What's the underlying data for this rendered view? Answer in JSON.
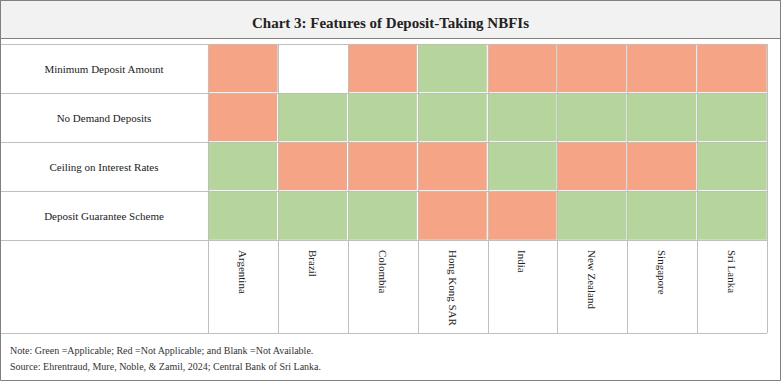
{
  "chart_data": {
    "type": "heatmap",
    "title": "Chart 3: Features of Deposit-Taking NBFIs",
    "categories": [
      "Argentina",
      "Brazil",
      "Colombia",
      "Hong Kong SAR",
      "India",
      "New Zealand",
      "Singapore",
      "Sri Lanka"
    ],
    "rows": [
      "Minimum Deposit Amount",
      "No Demand Deposits",
      "Ceiling on Interest Rates",
      "Deposit Guarantee Scheme"
    ],
    "status": [
      {
        "name": "Applicable",
        "color": "#b6d59c"
      },
      {
        "name": "Not Applicable",
        "color": "#f5a585"
      }
    ],
    "cells": [
      [
        "Not Applicable",
        null,
        "Not Applicable",
        "Applicable",
        "Not Applicable",
        "Not Applicable",
        "Not Applicable",
        "Not Applicable"
      ],
      [
        "Not Applicable",
        "Applicable",
        "Applicable",
        "Applicable",
        "Applicable",
        "Applicable",
        "Applicable",
        "Applicable"
      ],
      [
        "Applicable",
        "Not Applicable",
        "Not Applicable",
        "Not Applicable",
        "Applicable",
        "Not Applicable",
        "Not Applicable",
        "Applicable"
      ],
      [
        "Applicable",
        "Applicable",
        "Applicable",
        "Not Applicable",
        "Not Applicable",
        "Applicable",
        "Applicable",
        "Applicable"
      ]
    ],
    "note": "Note: Green =Applicable; Red =Not Applicable; and Blank =Not Available.",
    "source": "Source: Ehrentraud, Mure, Noble, & Zamil, 2024; Central Bank of Sri Lanka."
  }
}
